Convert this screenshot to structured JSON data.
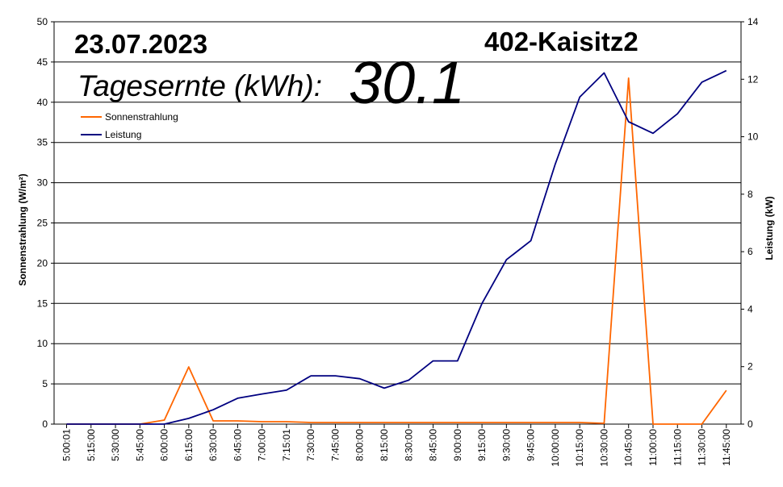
{
  "header": {
    "date": "23.07.2023",
    "station": "402-Kaisitz2",
    "yield_label": "Tagesernte (kWh):",
    "yield_value": "30.1"
  },
  "chart_data": {
    "type": "line",
    "categories": [
      "5:00:01",
      "5:15:00",
      "5:30:00",
      "5:45:00",
      "6:00:00",
      "6:15:00",
      "6:30:00",
      "6:45:00",
      "7:00:00",
      "7:15:01",
      "7:30:00",
      "7:45:00",
      "8:00:00",
      "8:15:00",
      "8:30:00",
      "8:45:00",
      "9:00:00",
      "9:15:00",
      "9:30:00",
      "9:45:00",
      "10:00:00",
      "10:15:00",
      "10:30:00",
      "10:45:00",
      "11:00:00",
      "11:15:00",
      "11:30:00",
      "11:45:00"
    ],
    "series": [
      {
        "name": "Sonnenstrahlung",
        "axis": "left",
        "color": "#ff6600",
        "values": [
          0,
          0,
          0,
          0,
          0.5,
          7.1,
          0.4,
          0.4,
          0.3,
          0.3,
          0.2,
          0.2,
          0.2,
          0.2,
          0.2,
          0.2,
          0.2,
          0.2,
          0.2,
          0.2,
          0.2,
          0.2,
          0.1,
          43,
          0,
          0,
          0,
          4.2
        ]
      },
      {
        "name": "Leistung",
        "axis": "right",
        "color": "#000080",
        "values": [
          0,
          0,
          0,
          0,
          0,
          0.2,
          0.5,
          0.9,
          1.05,
          1.18,
          1.68,
          1.68,
          1.58,
          1.25,
          1.53,
          2.2,
          2.2,
          4.2,
          5.72,
          6.38,
          9.05,
          11.38,
          12.22,
          10.52,
          10.12,
          10.8,
          11.9,
          12.3
        ]
      }
    ],
    "ylabel_left": "Sonnenstrahlung (W/m²)",
    "ylabel_right": "Leistung (kW)",
    "ylim_left": [
      0,
      50
    ],
    "ylim_right": [
      0,
      14
    ],
    "yticks_left": [
      0,
      5,
      10,
      15,
      20,
      25,
      30,
      35,
      40,
      45,
      50
    ],
    "yticks_right": [
      0,
      2,
      4,
      6,
      8,
      10,
      12,
      14
    ],
    "grid": true,
    "legend_position": "top-left"
  }
}
